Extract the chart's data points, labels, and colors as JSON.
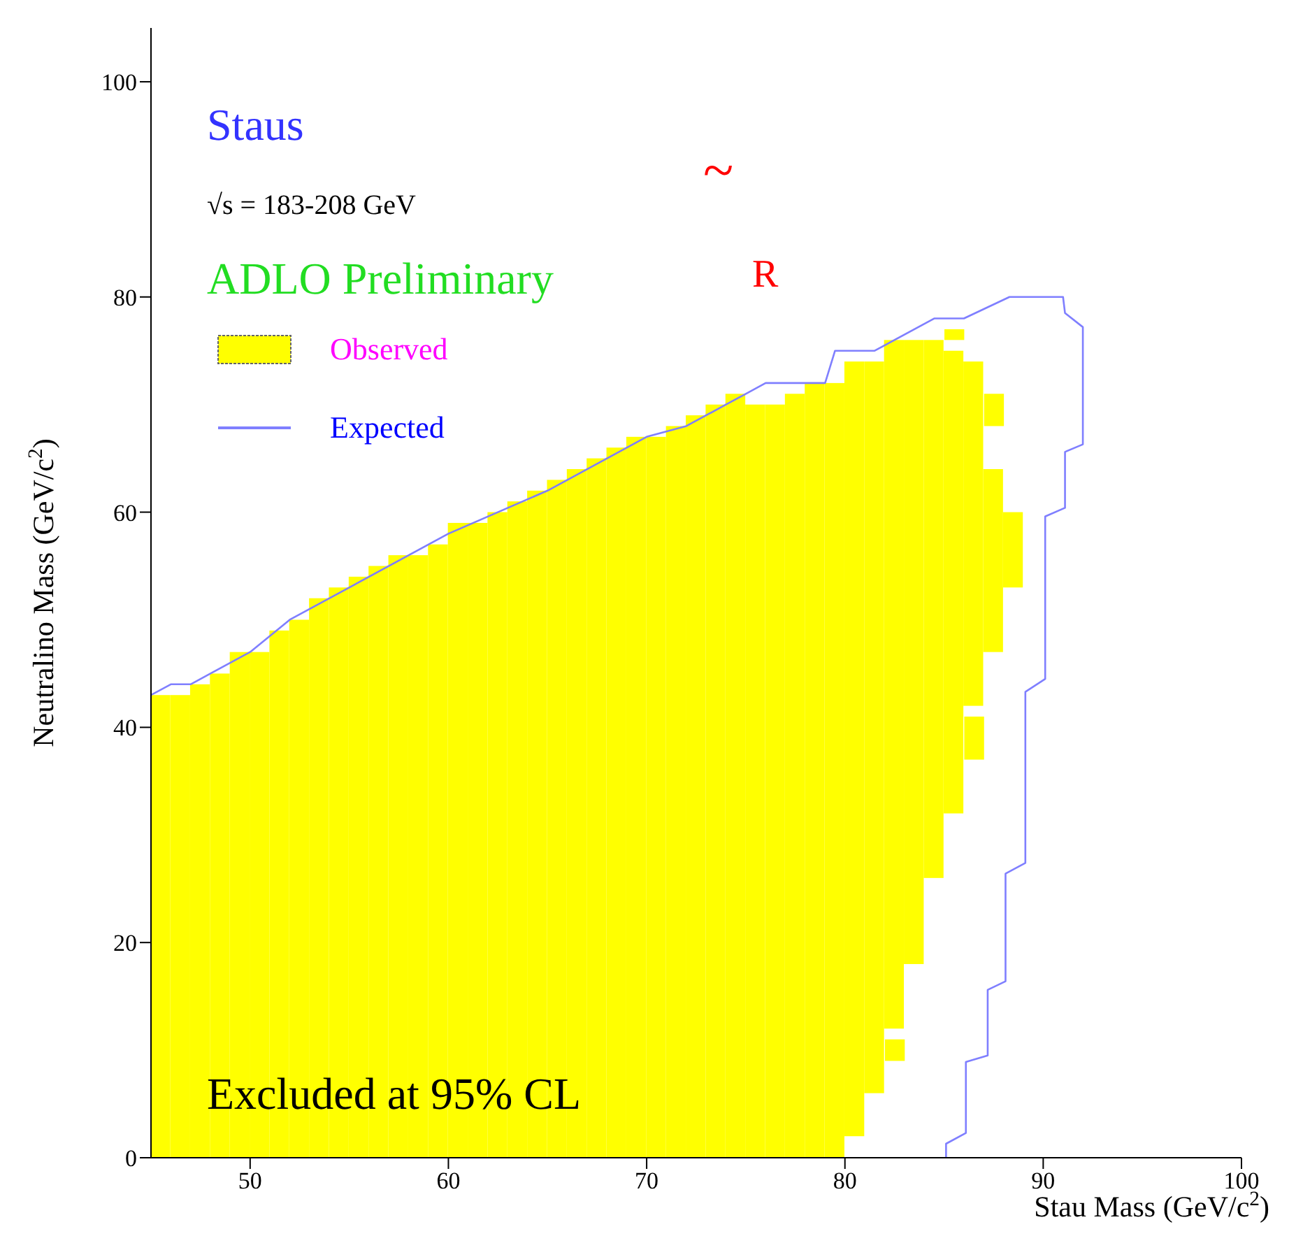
{
  "chart_data": {
    "type": "bar",
    "title": "Staus",
    "subtitle": "√s = 183-208 GeV",
    "xlabel": "Stau Mass (GeV/c$^{2}$)",
    "ylabel": "Neutralino Mass (GeV/c$^{2}$)",
    "annotations": [
      "ADLO Preliminary",
      "~",
      "R",
      "Excluded at 95% CL"
    ],
    "xlim": [
      45,
      100
    ],
    "xticks": [
      50,
      60,
      70,
      80,
      90,
      100
    ],
    "ylim": [
      0,
      105
    ],
    "yticks": [
      0,
      20,
      40,
      60,
      80,
      100
    ],
    "legend": "top left",
    "series": [
      {
        "name": "Observed",
        "color": "#ffff00",
        "x": [
          45.5,
          46.5,
          47.5,
          48.5,
          49.5,
          50.5,
          51.5,
          52.5,
          53.5,
          54.5,
          55.5,
          56.5,
          57.5,
          58.5,
          59.5,
          60.5,
          61.5,
          62.5,
          63.5,
          64.5,
          65.5,
          66.5,
          67.5,
          68.5,
          69.5,
          70.5,
          71.5,
          72.5,
          73.5,
          74.5,
          75.5,
          76.5,
          77.5,
          78.5,
          79.5,
          80.5,
          81.5,
          82.5,
          83.5,
          84.5,
          85.5,
          86.5,
          87.5,
          88.5
        ],
        "values": [
          43,
          43,
          44,
          45,
          47,
          47,
          49,
          50,
          52,
          53,
          54,
          55,
          56,
          56,
          57,
          59,
          59,
          60,
          61,
          62,
          63,
          64,
          65,
          66,
          67,
          67,
          68,
          69,
          70,
          71,
          70,
          70,
          71,
          72,
          72,
          72,
          68,
          64,
          58,
          50,
          43,
          32,
          17,
          7
        ],
        "base": [
          0,
          0,
          0,
          0,
          0,
          0,
          0,
          0,
          0,
          0,
          0,
          0,
          0,
          0,
          0,
          0,
          0,
          0,
          0,
          0,
          0,
          0,
          0,
          0,
          0,
          0,
          0,
          0,
          0,
          0,
          0,
          0,
          0,
          0,
          0,
          2,
          6,
          12,
          18,
          26,
          32,
          42,
          47,
          53
        ]
      },
      {
        "color": "#ffff00",
        "x": [
          82.5,
          85.5,
          86.5,
          87.5
        ],
        "values": [
          2,
          1,
          4,
          3
        ],
        "base": [
          9,
          76,
          37,
          68
        ]
      },
      {
        "name": "Expected",
        "type": "line",
        "color": "#7f7fff",
        "x": [
          45,
          46,
          47,
          48,
          50,
          52,
          55,
          60,
          65,
          70,
          72,
          74,
          75,
          76,
          79,
          79.5,
          81.5,
          84.5,
          86,
          88.3,
          91,
          91.1,
          92,
          92,
          91.1,
          91.1,
          90.1,
          90.1,
          89.1,
          89.1,
          88.1,
          88.1,
          87.2,
          87.2,
          86.1,
          86.1,
          85.1,
          85.1
        ],
        "values": [
          43,
          44,
          44,
          45,
          47,
          50,
          53,
          58,
          62,
          67,
          68,
          70,
          71,
          72,
          72,
          75,
          75,
          78,
          78,
          80,
          80,
          78.5,
          77.2,
          66.3,
          65.6,
          60.4,
          59.6,
          44.5,
          43.3,
          27.4,
          26.4,
          16.4,
          15.6,
          9.5,
          8.9,
          2.3,
          1.3,
          0
        ]
      }
    ]
  }
}
